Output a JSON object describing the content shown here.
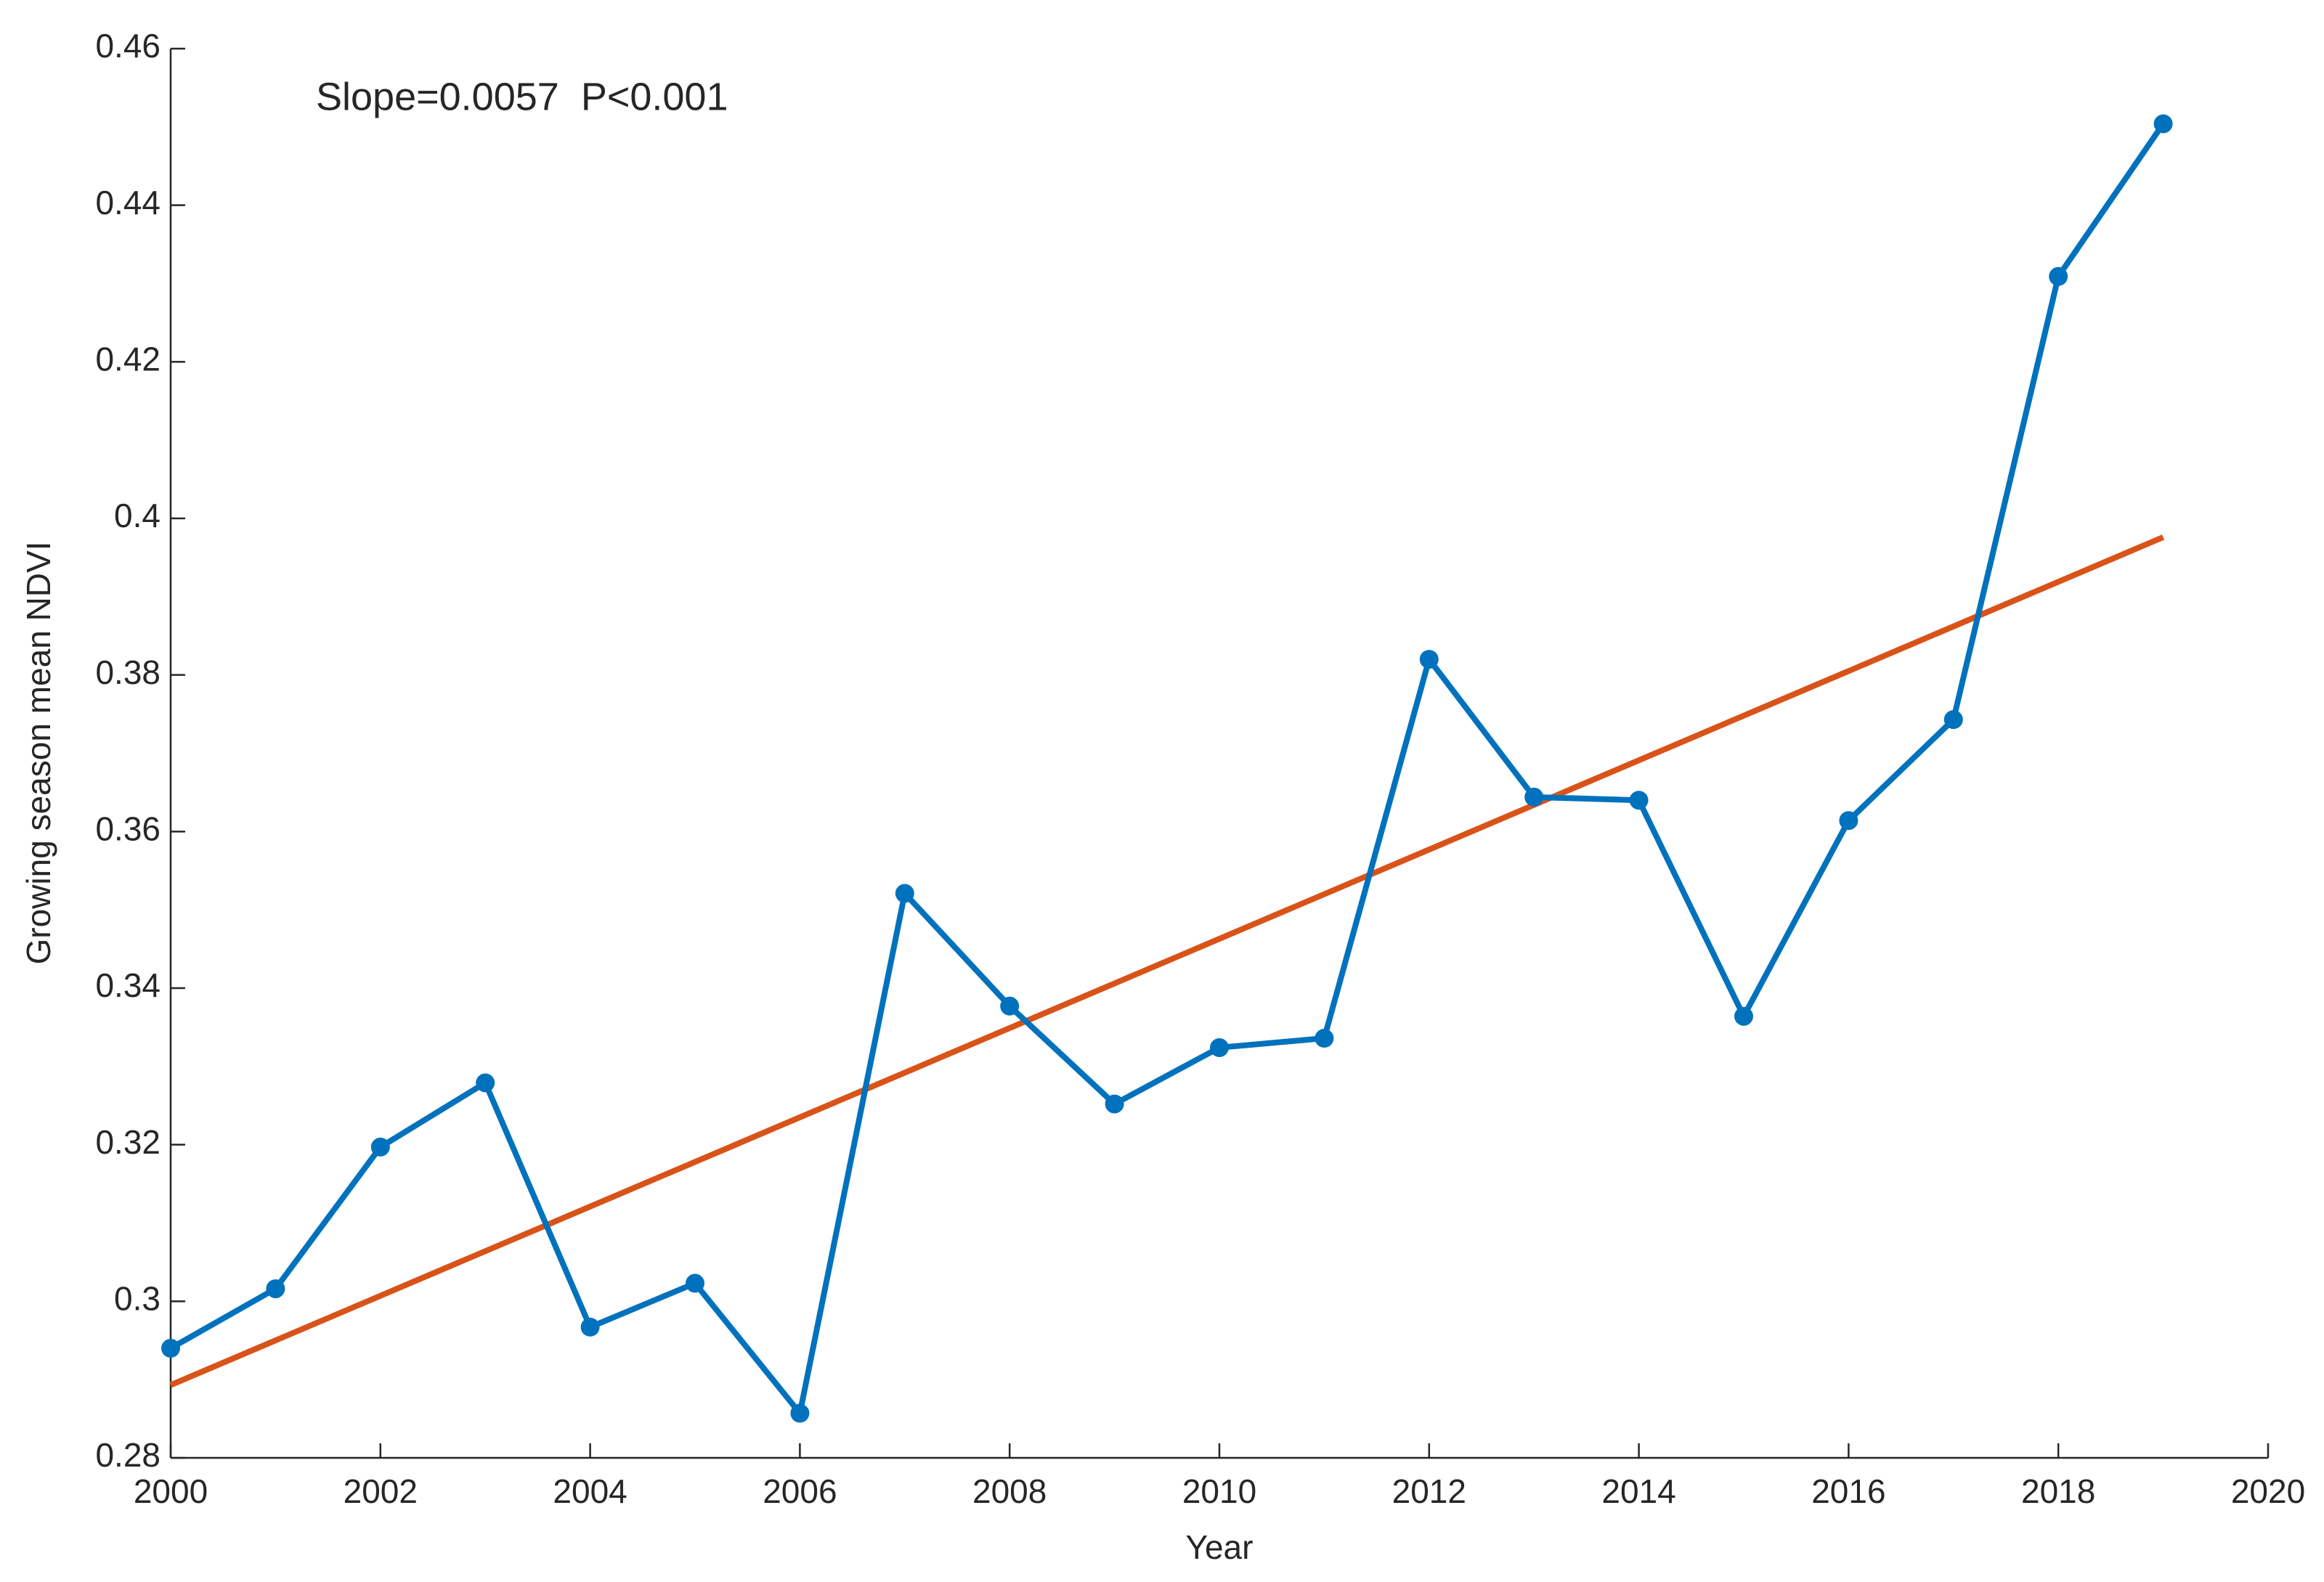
{
  "chart_data": {
    "type": "line",
    "annotation": "Slope=0.0057  P<0.001",
    "xlabel": "Year",
    "ylabel": "Growing season mean NDVI",
    "x": [
      2000,
      2001,
      2002,
      2003,
      2004,
      2005,
      2006,
      2007,
      2008,
      2009,
      2010,
      2011,
      2012,
      2013,
      2014,
      2015,
      2016,
      2017,
      2018,
      2019
    ],
    "series": [
      {
        "color": "#0072bd",
        "values": [
          0.294,
          0.3016,
          0.3197,
          0.3279,
          0.2967,
          0.3023,
          0.2857,
          0.3521,
          0.3377,
          0.3252,
          0.3324,
          0.3336,
          0.382,
          0.3644,
          0.364,
          0.3364,
          0.3614,
          0.3743,
          0.4309,
          0.4504
        ]
      }
    ],
    "trend_line": {
      "x": [
        2000,
        2019
      ],
      "values": [
        0.2893,
        0.3976
      ],
      "color": "#d95319"
    },
    "xlim": [
      2000,
      2020
    ],
    "xticks": [
      2000,
      2002,
      2004,
      2006,
      2008,
      2010,
      2012,
      2014,
      2016,
      2018,
      2020
    ],
    "ylim": [
      0.28,
      0.46
    ],
    "yticks": [
      0.28,
      0.3,
      0.32,
      0.34,
      0.36,
      0.38,
      0.4,
      0.42,
      0.44,
      0.46
    ],
    "grid": false
  }
}
